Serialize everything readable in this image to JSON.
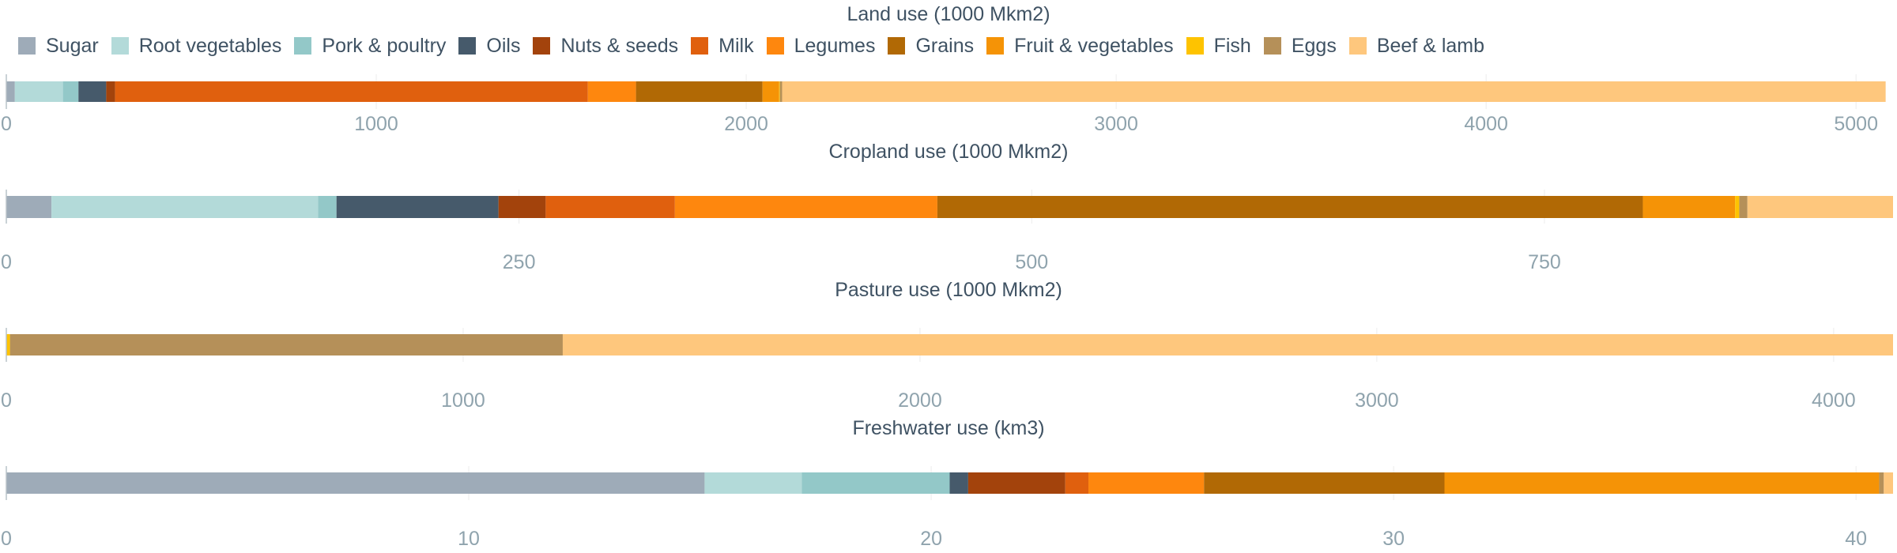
{
  "chart_data": [
    {
      "type": "bar",
      "orientation": "horizontal",
      "stacked": true,
      "title": "Land use (1000 Mkm2)",
      "xlim": [
        0,
        5100
      ],
      "xticks": [
        0,
        1000,
        2000,
        3000,
        4000,
        5000
      ],
      "xtick_labels": [
        "0",
        "1000",
        "2000",
        "3000",
        "4000",
        "5000"
      ],
      "grid": true,
      "series": [
        {
          "name": "Sugar",
          "value": 23
        },
        {
          "name": "Root vegetables",
          "value": 130
        },
        {
          "name": "Pork & poultry",
          "value": 42
        },
        {
          "name": "Oils",
          "value": 75
        },
        {
          "name": "Nuts & seeds",
          "value": 24
        },
        {
          "name": "Milk",
          "value": 1278
        },
        {
          "name": "Legumes",
          "value": 130
        },
        {
          "name": "Grains",
          "value": 342
        },
        {
          "name": "Fruit & vegetables",
          "value": 45
        },
        {
          "name": "Fish",
          "value": 2
        },
        {
          "name": "Eggs",
          "value": 6
        },
        {
          "name": "Beef & lamb",
          "value": 2983
        }
      ]
    },
    {
      "type": "bar",
      "orientation": "horizontal",
      "stacked": true,
      "title": "Cropland use (1000 Mkm2)",
      "xlim": [
        0,
        920
      ],
      "xticks": [
        0,
        250,
        500,
        750
      ],
      "xtick_labels": [
        "0",
        "250",
        "500",
        "750"
      ],
      "grid": true,
      "series": [
        {
          "name": "Sugar",
          "value": 22
        },
        {
          "name": "Root vegetables",
          "value": 130
        },
        {
          "name": "Pork & poultry",
          "value": 9
        },
        {
          "name": "Oils",
          "value": 79
        },
        {
          "name": "Nuts & seeds",
          "value": 23
        },
        {
          "name": "Milk",
          "value": 63
        },
        {
          "name": "Legumes",
          "value": 128
        },
        {
          "name": "Grains",
          "value": 344
        },
        {
          "name": "Fruit & vegetables",
          "value": 45
        },
        {
          "name": "Fish",
          "value": 2
        },
        {
          "name": "Eggs",
          "value": 4
        },
        {
          "name": "Beef & lamb",
          "value": 71
        }
      ]
    },
    {
      "type": "bar",
      "orientation": "horizontal",
      "stacked": true,
      "title": "Pasture use (1000 Mkm2)",
      "xlim": [
        0,
        4130
      ],
      "xticks": [
        0,
        1000,
        2000,
        3000,
        4000
      ],
      "xtick_labels": [
        "0",
        "1000",
        "2000",
        "3000",
        "4000"
      ],
      "grid": true,
      "series": [
        {
          "name": "Sugar",
          "value": 0
        },
        {
          "name": "Root vegetables",
          "value": 0
        },
        {
          "name": "Pork & poultry",
          "value": 0
        },
        {
          "name": "Oils",
          "value": 0
        },
        {
          "name": "Nuts & seeds",
          "value": 0
        },
        {
          "name": "Milk",
          "value": 0
        },
        {
          "name": "Legumes",
          "value": 0
        },
        {
          "name": "Grains",
          "value": 0
        },
        {
          "name": "Fruit & vegetables",
          "value": 0
        },
        {
          "name": "Fish",
          "value": 8
        },
        {
          "name": "Eggs",
          "value": 1210
        },
        {
          "name": "Beef & lamb",
          "value": 2912
        }
      ]
    },
    {
      "type": "bar",
      "orientation": "horizontal",
      "stacked": true,
      "title": "Freshwater use (km3)",
      "xlim": [
        0,
        40.8
      ],
      "xticks": [
        0,
        10,
        20,
        30,
        40
      ],
      "xtick_labels": [
        "0",
        "10",
        "20",
        "30",
        "40"
      ],
      "grid": true,
      "series": [
        {
          "name": "Sugar",
          "value": 15.1
        },
        {
          "name": "Root vegetables",
          "value": 2.1
        },
        {
          "name": "Pork & poultry",
          "value": 3.2
        },
        {
          "name": "Oils",
          "value": 0.4
        },
        {
          "name": "Nuts & seeds",
          "value": 2.1
        },
        {
          "name": "Milk",
          "value": 0.5
        },
        {
          "name": "Legumes",
          "value": 2.5
        },
        {
          "name": "Grains",
          "value": 5.2
        },
        {
          "name": "Fruit & vegetables",
          "value": 9.4
        },
        {
          "name": "Fish",
          "value": 0.0
        },
        {
          "name": "Eggs",
          "value": 0.1
        },
        {
          "name": "Beef & lamb",
          "value": 0.2
        }
      ]
    }
  ],
  "legend": {
    "position": "top-left",
    "items": [
      {
        "label": "Sugar",
        "color": "#9eabb8"
      },
      {
        "label": "Root vegetables",
        "color": "#b3dad9"
      },
      {
        "label": "Pork & poultry",
        "color": "#93c8c8"
      },
      {
        "label": "Oils",
        "color": "#465a6b"
      },
      {
        "label": "Nuts & seeds",
        "color": "#a3430c"
      },
      {
        "label": "Milk",
        "color": "#e0600e"
      },
      {
        "label": "Legumes",
        "color": "#fe870e"
      },
      {
        "label": "Grains",
        "color": "#b16905"
      },
      {
        "label": "Fruit & vegetables",
        "color": "#f59306"
      },
      {
        "label": "Fish",
        "color": "#fec300"
      },
      {
        "label": "Eggs",
        "color": "#b59059"
      },
      {
        "label": "Beef & lamb",
        "color": "#fec77d"
      }
    ]
  },
  "colors": {
    "axis_text": "#8fa3ad",
    "title_text": "#3f5263",
    "gridline": "#ececec",
    "axis_line": "#b9c2c9"
  }
}
